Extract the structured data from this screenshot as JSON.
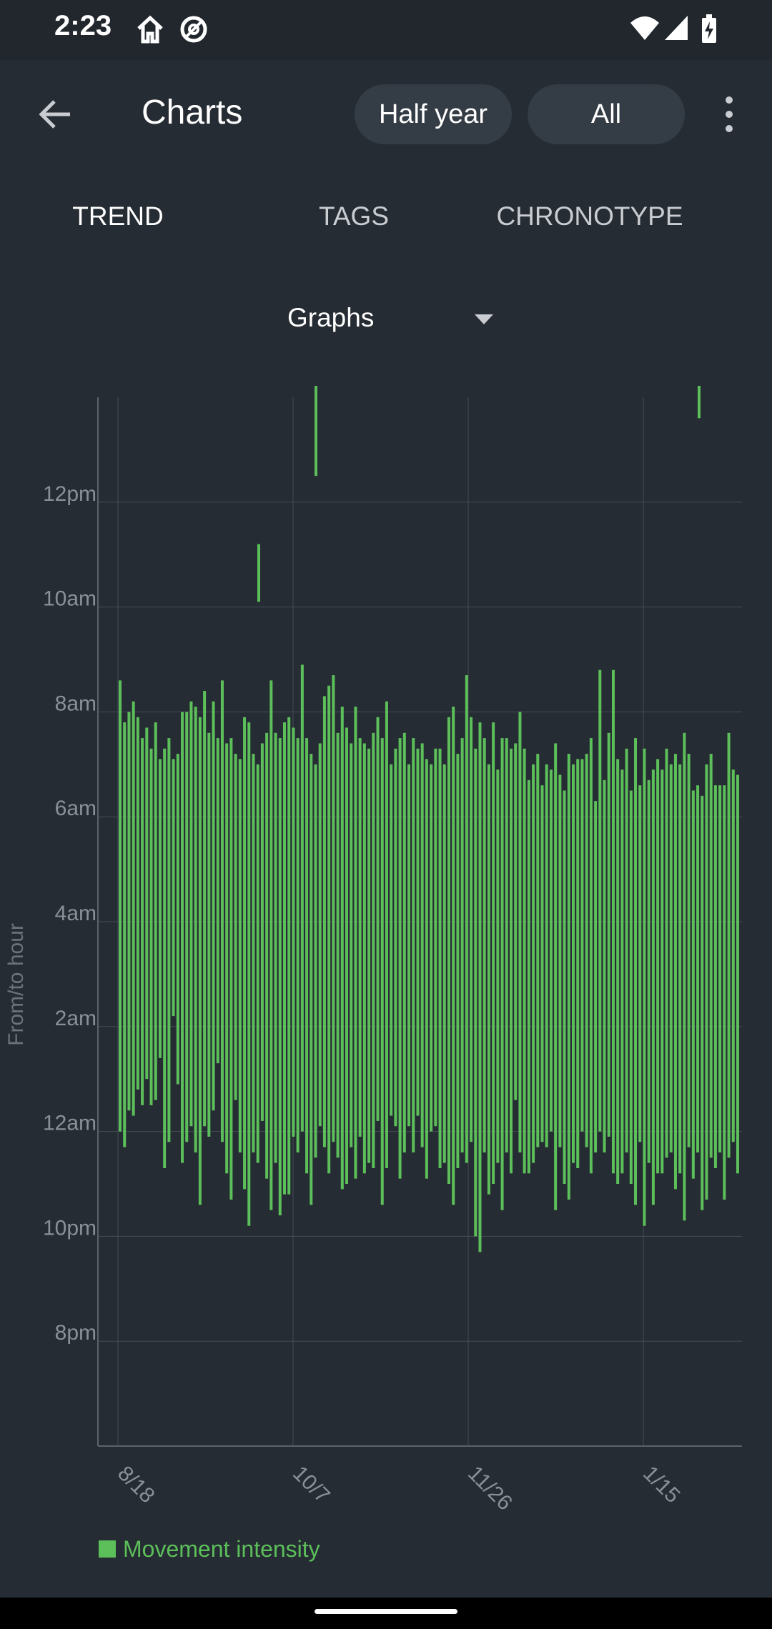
{
  "status_bar": {
    "time": "2:23",
    "icons": [
      "home-icon",
      "no-disturb-icon",
      "wifi-icon",
      "signal-icon",
      "battery-charging-icon"
    ]
  },
  "app_bar": {
    "title": "Charts",
    "range_chips": [
      "Half year",
      "All"
    ],
    "icons": [
      "back-arrow-icon",
      "overflow-menu-icon"
    ]
  },
  "tabs": [
    {
      "label": "TREND",
      "active": true
    },
    {
      "label": "TAGS",
      "active": false
    },
    {
      "label": "CHRONOTYPE",
      "active": false
    }
  ],
  "graph_selector": {
    "label": "Graphs",
    "icon": "dropdown-arrow-icon"
  },
  "colors": {
    "background": "#262c33",
    "series": "#5cbf5a",
    "series_secondary": "#4a7a9c",
    "grid": "#444c55"
  },
  "chart_data": {
    "type": "bar",
    "subtype": "floating-range",
    "title": "",
    "xlabel": "",
    "ylabel": "From/to hour",
    "y_ticks": [
      "8pm",
      "10pm",
      "12am",
      "2am",
      "4am",
      "6am",
      "8am",
      "10am",
      "12pm"
    ],
    "x_ticks": [
      "8/18",
      "10/7",
      "11/26",
      "1/15"
    ],
    "ylim": [
      "6:00pm",
      "2:00pm"
    ],
    "legend": {
      "placement": "bottom-left",
      "entries": [
        "Movement intensity"
      ]
    },
    "grid": true,
    "series": [
      {
        "name": "Movement intensity",
        "note_values": "Each night: [start, end] in hours after 6pm (18 = noon)",
        "values": [
          [
            6.0,
            14.6
          ],
          [
            5.7,
            13.8
          ],
          [
            6.4,
            14.0
          ],
          [
            6.3,
            14.2
          ],
          [
            6.8,
            13.9
          ],
          [
            6.5,
            13.5
          ],
          [
            7.0,
            13.7
          ],
          [
            6.5,
            13.3
          ],
          [
            6.6,
            13.8
          ],
          [
            7.4,
            13.1
          ],
          [
            5.3,
            13.3
          ],
          [
            5.8,
            13.5
          ],
          [
            8.2,
            13.1
          ],
          [
            6.9,
            13.2
          ],
          [
            5.4,
            14.0
          ],
          [
            5.8,
            14.0
          ],
          [
            6.1,
            14.2
          ],
          [
            5.6,
            14.1
          ],
          [
            4.6,
            13.9
          ],
          [
            6.1,
            14.4
          ],
          [
            5.9,
            13.6
          ],
          [
            6.4,
            14.2
          ],
          [
            7.3,
            13.5
          ],
          [
            5.8,
            14.6
          ],
          [
            5.2,
            13.4
          ],
          [
            4.7,
            13.5
          ],
          [
            6.6,
            13.2
          ],
          [
            5.6,
            13.1
          ],
          [
            4.9,
            13.9
          ],
          [
            4.2,
            13.8
          ],
          [
            5.6,
            13.2
          ],
          [
            5.4,
            13.0
          ],
          [
            6.2,
            13.4
          ],
          [
            5.1,
            13.6
          ],
          [
            4.5,
            14.6
          ],
          [
            5.4,
            13.6
          ],
          [
            4.4,
            13.5
          ],
          [
            4.8,
            13.8
          ],
          [
            4.8,
            13.9
          ],
          [
            5.9,
            13.7
          ],
          [
            5.6,
            13.5
          ],
          [
            6.0,
            14.9
          ],
          [
            5.2,
            13.5
          ],
          [
            4.6,
            13.2
          ],
          [
            5.5,
            13.0
          ],
          [
            6.1,
            13.4
          ],
          [
            5.7,
            14.3
          ],
          [
            5.2,
            14.5
          ],
          [
            5.8,
            14.7
          ],
          [
            5.5,
            13.6
          ],
          [
            4.9,
            14.1
          ],
          [
            5.0,
            13.7
          ],
          [
            5.7,
            13.4
          ],
          [
            5.1,
            14.1
          ],
          [
            5.9,
            13.5
          ],
          [
            5.2,
            13.4
          ],
          [
            5.4,
            13.3
          ],
          [
            5.3,
            13.6
          ],
          [
            6.2,
            13.9
          ],
          [
            4.6,
            13.5
          ],
          [
            5.3,
            14.2
          ],
          [
            6.3,
            13.0
          ],
          [
            6.1,
            13.3
          ],
          [
            5.1,
            13.5
          ],
          [
            5.6,
            13.6
          ],
          [
            6.1,
            13.0
          ],
          [
            5.6,
            13.5
          ],
          [
            6.3,
            13.3
          ],
          [
            5.7,
            13.4
          ],
          [
            5.1,
            13.1
          ],
          [
            6.0,
            13.0
          ],
          [
            6.1,
            13.3
          ],
          [
            5.3,
            13.3
          ],
          [
            5.4,
            13.0
          ],
          [
            5.0,
            13.9
          ],
          [
            4.6,
            14.1
          ],
          [
            5.3,
            13.2
          ],
          [
            5.6,
            13.5
          ],
          [
            5.4,
            14.7
          ],
          [
            5.8,
            13.9
          ],
          [
            4.0,
            13.3
          ],
          [
            3.7,
            13.8
          ],
          [
            5.6,
            13.5
          ],
          [
            4.8,
            13.0
          ],
          [
            5.0,
            13.8
          ],
          [
            5.4,
            12.9
          ],
          [
            4.5,
            13.5
          ],
          [
            5.6,
            13.5
          ],
          [
            5.2,
            13.3
          ],
          [
            6.6,
            13.4
          ],
          [
            5.6,
            14.0
          ],
          [
            5.2,
            13.3
          ],
          [
            5.2,
            12.7
          ],
          [
            5.4,
            13.0
          ],
          [
            5.7,
            13.2
          ],
          [
            5.8,
            12.6
          ],
          [
            5.7,
            13.0
          ],
          [
            6.0,
            12.9
          ],
          [
            4.5,
            13.4
          ],
          [
            5.7,
            12.8
          ],
          [
            5.0,
            12.5
          ],
          [
            4.7,
            13.2
          ],
          [
            5.4,
            13.0
          ],
          [
            5.3,
            13.1
          ],
          [
            6.0,
            13.1
          ],
          [
            5.7,
            13.2
          ],
          [
            5.2,
            13.5
          ],
          [
            5.6,
            12.3
          ],
          [
            6.0,
            14.8
          ],
          [
            5.6,
            12.7
          ],
          [
            5.9,
            13.6
          ],
          [
            5.2,
            14.8
          ],
          [
            5.0,
            13.1
          ],
          [
            5.2,
            12.9
          ],
          [
            5.6,
            13.3
          ],
          [
            5.0,
            12.5
          ],
          [
            4.6,
            13.5
          ],
          [
            5.8,
            12.6
          ],
          [
            4.2,
            13.3
          ],
          [
            5.4,
            12.7
          ],
          [
            4.6,
            12.9
          ],
          [
            5.2,
            13.1
          ],
          [
            5.2,
            12.9
          ],
          [
            5.5,
            13.3
          ],
          [
            5.6,
            13.0
          ],
          [
            4.9,
            13.2
          ],
          [
            5.2,
            13.0
          ],
          [
            4.3,
            13.6
          ],
          [
            5.7,
            13.2
          ],
          [
            5.1,
            12.5
          ],
          [
            5.6,
            12.6
          ],
          [
            4.5,
            12.4
          ],
          [
            4.7,
            13.0
          ],
          [
            5.5,
            13.2
          ],
          [
            5.3,
            12.6
          ],
          [
            5.6,
            12.6
          ],
          [
            4.7,
            12.6
          ],
          [
            5.5,
            13.6
          ],
          [
            5.8,
            12.9
          ],
          [
            5.2,
            12.8
          ]
        ]
      },
      {
        "name": "",
        "note_values": "Naps: [start, end] in hours after 6pm",
        "values": [
          [
            16.1,
            17.2
          ],
          [
            18.5,
            20.7
          ],
          [
            19.6,
            22.0
          ]
        ]
      }
    ]
  }
}
